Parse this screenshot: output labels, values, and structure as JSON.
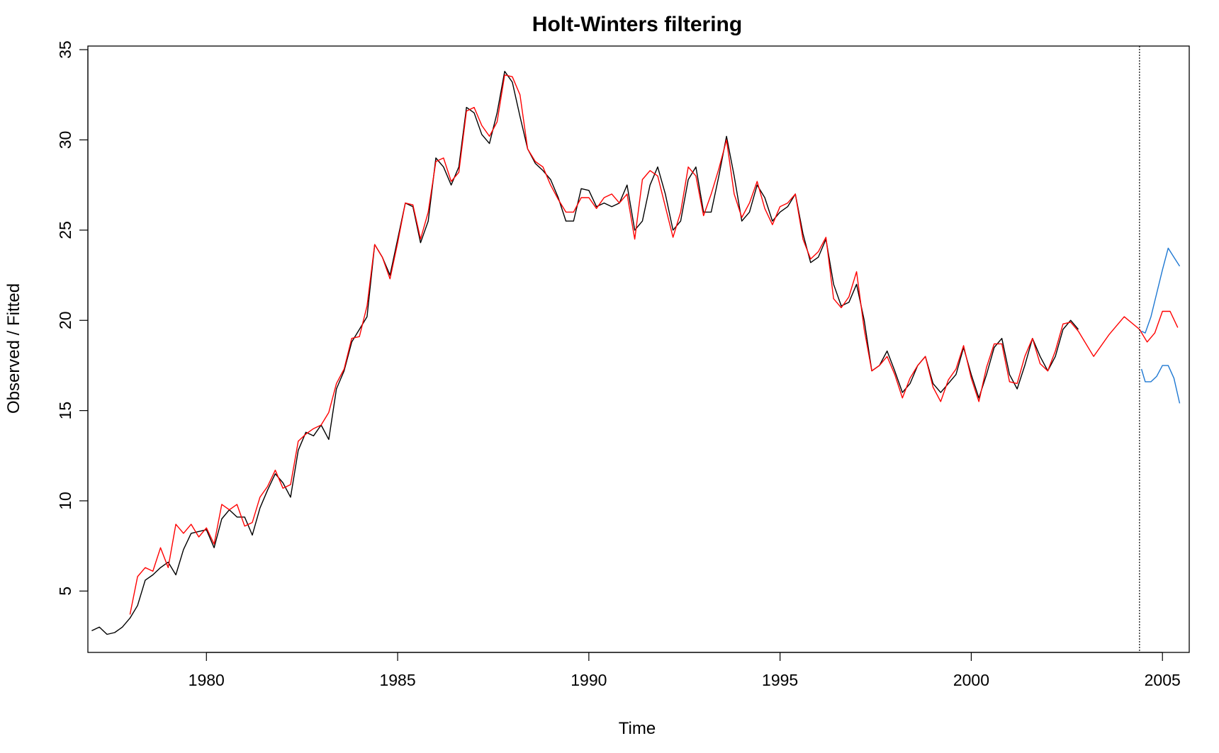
{
  "chart_data": {
    "type": "line",
    "title": "Holt-Winters filtering",
    "xlabel": "Time",
    "ylabel": "Observed / Fitted",
    "xlim": [
      1976.9,
      2005.7
    ],
    "ylim": [
      1.6,
      35.2
    ],
    "x_ticks": [
      1980,
      1985,
      1990,
      1995,
      2000,
      2005
    ],
    "y_ticks": [
      5,
      10,
      15,
      20,
      25,
      30,
      35
    ],
    "grid": false,
    "legend": null,
    "vline_x": 2004.4,
    "series": [
      {
        "color": "#000000",
        "points": [
          [
            1977.0,
            2.8
          ],
          [
            1977.2,
            3.0
          ],
          [
            1977.4,
            2.6
          ],
          [
            1977.6,
            2.7
          ],
          [
            1977.8,
            3.0
          ],
          [
            1978.0,
            3.5
          ],
          [
            1978.2,
            4.2
          ],
          [
            1978.4,
            5.6
          ],
          [
            1978.6,
            5.9
          ],
          [
            1978.8,
            6.3
          ],
          [
            1979.0,
            6.6
          ],
          [
            1979.2,
            5.9
          ],
          [
            1979.4,
            7.3
          ],
          [
            1979.6,
            8.2
          ],
          [
            1979.8,
            8.3
          ],
          [
            1980.0,
            8.4
          ],
          [
            1980.2,
            7.4
          ],
          [
            1980.4,
            9.0
          ],
          [
            1980.6,
            9.5
          ],
          [
            1980.8,
            9.1
          ],
          [
            1981.0,
            9.1
          ],
          [
            1981.2,
            8.1
          ],
          [
            1981.4,
            9.6
          ],
          [
            1981.6,
            10.6
          ],
          [
            1981.8,
            11.5
          ],
          [
            1982.0,
            11.0
          ],
          [
            1982.2,
            10.2
          ],
          [
            1982.4,
            12.8
          ],
          [
            1982.6,
            13.8
          ],
          [
            1982.8,
            13.6
          ],
          [
            1983.0,
            14.2
          ],
          [
            1983.2,
            13.4
          ],
          [
            1983.4,
            16.2
          ],
          [
            1983.6,
            17.2
          ],
          [
            1983.8,
            18.8
          ],
          [
            1984.0,
            19.5
          ],
          [
            1984.2,
            20.2
          ],
          [
            1984.4,
            24.2
          ],
          [
            1984.6,
            23.5
          ],
          [
            1984.8,
            22.5
          ],
          [
            1985.0,
            24.5
          ],
          [
            1985.2,
            26.5
          ],
          [
            1985.4,
            26.3
          ],
          [
            1985.6,
            24.3
          ],
          [
            1985.8,
            25.5
          ],
          [
            1986.0,
            29.0
          ],
          [
            1986.2,
            28.5
          ],
          [
            1986.4,
            27.5
          ],
          [
            1986.6,
            28.5
          ],
          [
            1986.8,
            31.8
          ],
          [
            1987.0,
            31.5
          ],
          [
            1987.2,
            30.3
          ],
          [
            1987.4,
            29.8
          ],
          [
            1987.6,
            31.5
          ],
          [
            1987.8,
            33.8
          ],
          [
            1988.0,
            33.2
          ],
          [
            1988.2,
            31.3
          ],
          [
            1988.4,
            29.5
          ],
          [
            1988.6,
            28.7
          ],
          [
            1988.8,
            28.3
          ],
          [
            1989.0,
            27.8
          ],
          [
            1989.2,
            26.8
          ],
          [
            1989.4,
            25.5
          ],
          [
            1989.6,
            25.5
          ],
          [
            1989.8,
            27.3
          ],
          [
            1990.0,
            27.2
          ],
          [
            1990.2,
            26.3
          ],
          [
            1990.4,
            26.5
          ],
          [
            1990.6,
            26.3
          ],
          [
            1990.8,
            26.5
          ],
          [
            1991.0,
            27.5
          ],
          [
            1991.2,
            25.0
          ],
          [
            1991.4,
            25.5
          ],
          [
            1991.6,
            27.5
          ],
          [
            1991.8,
            28.5
          ],
          [
            1992.0,
            27.0
          ],
          [
            1992.2,
            25.0
          ],
          [
            1992.4,
            25.5
          ],
          [
            1992.6,
            27.8
          ],
          [
            1992.8,
            28.5
          ],
          [
            1993.0,
            26.0
          ],
          [
            1993.2,
            26.0
          ],
          [
            1993.4,
            28.0
          ],
          [
            1993.6,
            30.2
          ],
          [
            1993.8,
            28.0
          ],
          [
            1994.0,
            25.5
          ],
          [
            1994.2,
            26.0
          ],
          [
            1994.4,
            27.5
          ],
          [
            1994.6,
            26.8
          ],
          [
            1994.8,
            25.5
          ],
          [
            1995.0,
            26.0
          ],
          [
            1995.2,
            26.3
          ],
          [
            1995.4,
            27.0
          ],
          [
            1995.6,
            24.8
          ],
          [
            1995.8,
            23.2
          ],
          [
            1996.0,
            23.5
          ],
          [
            1996.2,
            24.5
          ],
          [
            1996.4,
            22.0
          ],
          [
            1996.6,
            20.8
          ],
          [
            1996.8,
            21.0
          ],
          [
            1997.0,
            22.0
          ],
          [
            1997.2,
            20.0
          ],
          [
            1997.4,
            17.2
          ],
          [
            1997.6,
            17.5
          ],
          [
            1997.8,
            18.3
          ],
          [
            1998.0,
            17.2
          ],
          [
            1998.2,
            16.0
          ],
          [
            1998.4,
            16.5
          ],
          [
            1998.6,
            17.5
          ],
          [
            1998.8,
            18.0
          ],
          [
            1999.0,
            16.5
          ],
          [
            1999.2,
            16.0
          ],
          [
            1999.4,
            16.5
          ],
          [
            1999.6,
            17.0
          ],
          [
            1999.8,
            18.5
          ],
          [
            2000.0,
            17.0
          ],
          [
            2000.2,
            15.7
          ],
          [
            2000.4,
            17.0
          ],
          [
            2000.6,
            18.5
          ],
          [
            2000.8,
            19.0
          ],
          [
            2001.0,
            17.0
          ],
          [
            2001.2,
            16.2
          ],
          [
            2001.4,
            17.5
          ],
          [
            2001.6,
            19.0
          ],
          [
            2001.8,
            18.0
          ],
          [
            2002.0,
            17.2
          ],
          [
            2002.2,
            18.0
          ],
          [
            2002.4,
            19.5
          ],
          [
            2002.6,
            20.0
          ],
          [
            2002.8,
            19.5
          ]
        ]
      },
      {
        "color": "#ff0000",
        "points": [
          [
            1978.0,
            3.7
          ],
          [
            1978.2,
            5.8
          ],
          [
            1978.4,
            6.3
          ],
          [
            1978.6,
            6.1
          ],
          [
            1978.8,
            7.4
          ],
          [
            1979.0,
            6.3
          ],
          [
            1979.2,
            8.7
          ],
          [
            1979.4,
            8.2
          ],
          [
            1979.6,
            8.7
          ],
          [
            1979.8,
            8.0
          ],
          [
            1980.0,
            8.5
          ],
          [
            1980.2,
            7.6
          ],
          [
            1980.4,
            9.8
          ],
          [
            1980.6,
            9.5
          ],
          [
            1980.8,
            9.8
          ],
          [
            1981.0,
            8.6
          ],
          [
            1981.2,
            8.8
          ],
          [
            1981.4,
            10.2
          ],
          [
            1981.6,
            10.8
          ],
          [
            1981.8,
            11.7
          ],
          [
            1982.0,
            10.7
          ],
          [
            1982.2,
            10.9
          ],
          [
            1982.4,
            13.3
          ],
          [
            1982.6,
            13.7
          ],
          [
            1982.8,
            14.0
          ],
          [
            1983.0,
            14.2
          ],
          [
            1983.2,
            14.9
          ],
          [
            1983.4,
            16.5
          ],
          [
            1983.6,
            17.3
          ],
          [
            1983.8,
            19.0
          ],
          [
            1984.0,
            19.1
          ],
          [
            1984.2,
            20.8
          ],
          [
            1984.4,
            24.2
          ],
          [
            1984.6,
            23.5
          ],
          [
            1984.8,
            22.3
          ],
          [
            1985.0,
            24.3
          ],
          [
            1985.2,
            26.5
          ],
          [
            1985.4,
            26.4
          ],
          [
            1985.6,
            24.5
          ],
          [
            1985.8,
            26.0
          ],
          [
            1986.0,
            28.8
          ],
          [
            1986.2,
            29.0
          ],
          [
            1986.4,
            27.7
          ],
          [
            1986.6,
            28.2
          ],
          [
            1986.8,
            31.6
          ],
          [
            1987.0,
            31.8
          ],
          [
            1987.2,
            30.8
          ],
          [
            1987.4,
            30.2
          ],
          [
            1987.6,
            31.0
          ],
          [
            1987.8,
            33.6
          ],
          [
            1988.0,
            33.5
          ],
          [
            1988.2,
            32.5
          ],
          [
            1988.4,
            29.5
          ],
          [
            1988.6,
            28.8
          ],
          [
            1988.8,
            28.5
          ],
          [
            1989.0,
            27.5
          ],
          [
            1989.2,
            26.7
          ],
          [
            1989.4,
            26.0
          ],
          [
            1989.6,
            26.0
          ],
          [
            1989.8,
            26.8
          ],
          [
            1990.0,
            26.8
          ],
          [
            1990.2,
            26.2
          ],
          [
            1990.4,
            26.8
          ],
          [
            1990.6,
            27.0
          ],
          [
            1990.8,
            26.5
          ],
          [
            1991.0,
            27.0
          ],
          [
            1991.2,
            24.5
          ],
          [
            1991.4,
            27.8
          ],
          [
            1991.6,
            28.3
          ],
          [
            1991.8,
            28.0
          ],
          [
            1992.0,
            26.3
          ],
          [
            1992.2,
            24.6
          ],
          [
            1992.4,
            26.0
          ],
          [
            1992.6,
            28.5
          ],
          [
            1992.8,
            28.0
          ],
          [
            1993.0,
            25.8
          ],
          [
            1993.2,
            27.0
          ],
          [
            1993.4,
            28.4
          ],
          [
            1993.6,
            30.0
          ],
          [
            1993.8,
            27.0
          ],
          [
            1994.0,
            25.7
          ],
          [
            1994.2,
            26.5
          ],
          [
            1994.4,
            27.7
          ],
          [
            1994.6,
            26.2
          ],
          [
            1994.8,
            25.3
          ],
          [
            1995.0,
            26.3
          ],
          [
            1995.2,
            26.5
          ],
          [
            1995.4,
            27.0
          ],
          [
            1995.6,
            24.5
          ],
          [
            1995.8,
            23.4
          ],
          [
            1996.0,
            23.8
          ],
          [
            1996.2,
            24.6
          ],
          [
            1996.4,
            21.2
          ],
          [
            1996.6,
            20.7
          ],
          [
            1996.8,
            21.3
          ],
          [
            1997.0,
            22.7
          ],
          [
            1997.2,
            19.5
          ],
          [
            1997.4,
            17.2
          ],
          [
            1997.6,
            17.5
          ],
          [
            1997.8,
            18.0
          ],
          [
            1998.0,
            17.0
          ],
          [
            1998.2,
            15.7
          ],
          [
            1998.4,
            16.8
          ],
          [
            1998.6,
            17.5
          ],
          [
            1998.8,
            18.0
          ],
          [
            1999.0,
            16.3
          ],
          [
            1999.2,
            15.5
          ],
          [
            1999.4,
            16.7
          ],
          [
            1999.6,
            17.3
          ],
          [
            1999.8,
            18.6
          ],
          [
            2000.0,
            16.8
          ],
          [
            2000.2,
            15.5
          ],
          [
            2000.4,
            17.4
          ],
          [
            2000.6,
            18.7
          ],
          [
            2000.8,
            18.7
          ],
          [
            2001.0,
            16.6
          ],
          [
            2001.2,
            16.5
          ],
          [
            2001.4,
            18.0
          ],
          [
            2001.6,
            19.0
          ],
          [
            2001.8,
            17.6
          ],
          [
            2002.0,
            17.2
          ],
          [
            2002.2,
            18.3
          ],
          [
            2002.4,
            19.8
          ],
          [
            2002.6,
            19.9
          ],
          [
            2002.8,
            19.4
          ],
          [
            2003.2,
            18.0
          ],
          [
            2003.6,
            19.2
          ],
          [
            2004.0,
            20.2
          ],
          [
            2004.4,
            19.5
          ],
          [
            2004.6,
            18.8
          ],
          [
            2004.8,
            19.3
          ],
          [
            2005.0,
            20.5
          ],
          [
            2005.2,
            20.5
          ],
          [
            2005.4,
            19.6
          ]
        ]
      },
      {
        "color": "#1e78d2",
        "points": [
          [
            2004.45,
            19.4
          ],
          [
            2004.55,
            19.3
          ],
          [
            2004.7,
            20.2
          ],
          [
            2004.85,
            21.5
          ],
          [
            2005.0,
            22.8
          ],
          [
            2005.15,
            24.0
          ],
          [
            2005.3,
            23.5
          ],
          [
            2005.45,
            23.0
          ]
        ]
      },
      {
        "color": "#1e78d2",
        "points": [
          [
            2004.45,
            17.3
          ],
          [
            2004.55,
            16.6
          ],
          [
            2004.7,
            16.6
          ],
          [
            2004.85,
            16.9
          ],
          [
            2005.0,
            17.5
          ],
          [
            2005.15,
            17.5
          ],
          [
            2005.3,
            16.8
          ],
          [
            2005.45,
            15.4
          ]
        ]
      }
    ]
  }
}
